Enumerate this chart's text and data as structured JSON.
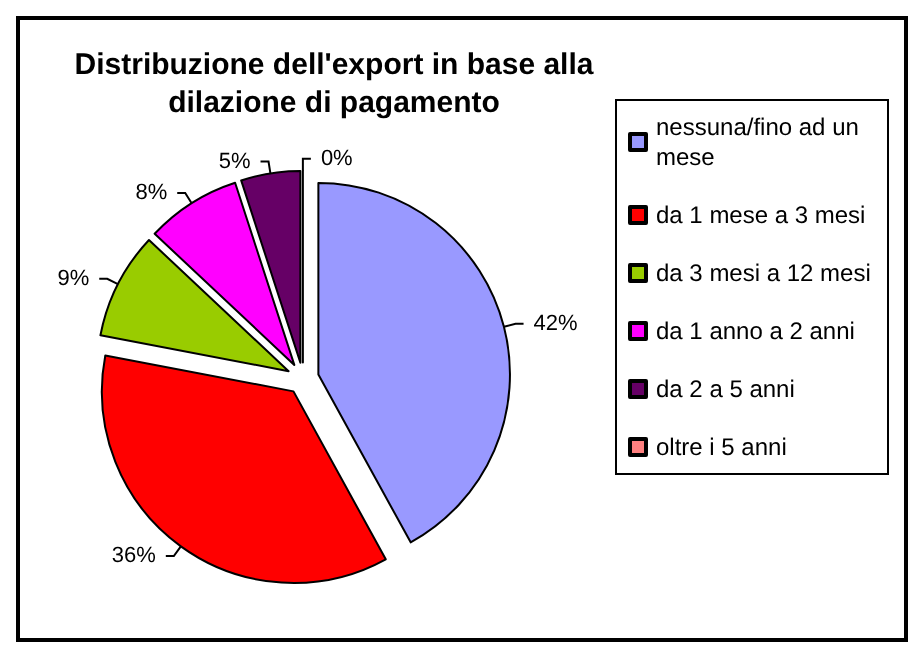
{
  "chart_data": {
    "type": "pie",
    "title": "Distribuzione dell'export in base alla dilazione di pagamento",
    "categories": [
      "nessuna/fino ad un mese",
      "da 1 mese a 3 mesi",
      "da 3 mesi a 12 mesi",
      "da 1 anno a 2 anni",
      "da 2 a 5 anni",
      "oltre i 5 anni"
    ],
    "values": [
      42,
      36,
      9,
      8,
      5,
      0
    ],
    "colors": [
      "#9999ff",
      "#ff0000",
      "#99cc00",
      "#ff00ff",
      "#660066",
      "#ff8080"
    ],
    "value_labels": [
      "42%",
      "36%",
      "9%",
      "8%",
      "5%",
      "0%"
    ],
    "legend": "right"
  }
}
